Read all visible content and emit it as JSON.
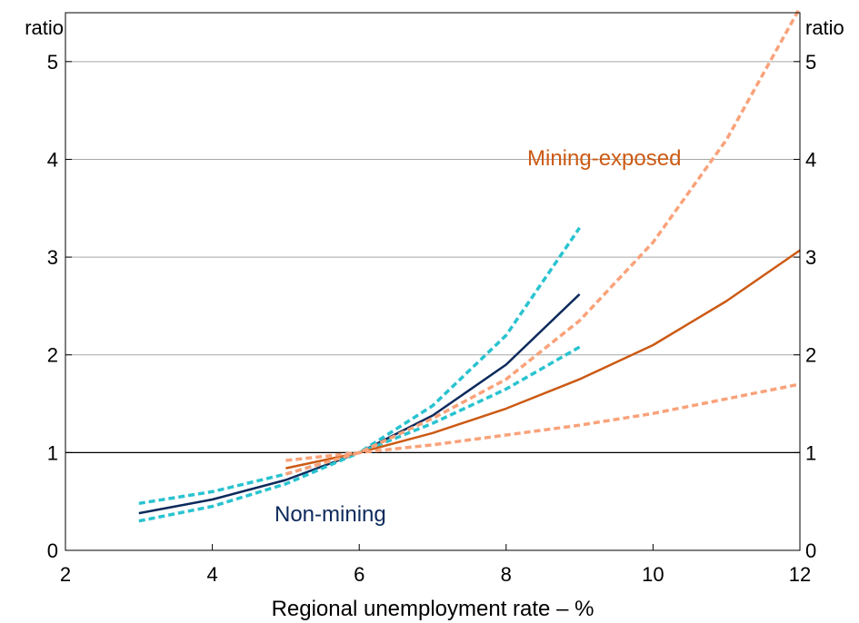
{
  "chart_data": {
    "type": "line",
    "xlabel": "Regional unemployment rate – %",
    "ylabel_left": "ratio",
    "ylabel_right": "ratio",
    "xlim": [
      2,
      12
    ],
    "ylim": [
      0,
      5.5
    ],
    "xticks": [
      2,
      4,
      6,
      8,
      10,
      12
    ],
    "yticks": [
      0,
      1,
      2,
      3,
      4,
      5
    ],
    "grid": "horizontal",
    "reference_line": 1,
    "annotations": [
      {
        "text": "Mining-exposed",
        "color": "#cc5a14"
      },
      {
        "text": "Non-mining",
        "color": "#0d2a5c"
      }
    ],
    "series": [
      {
        "group": "Non-mining",
        "role": "estimate",
        "color": "#0d2a5c",
        "dash": "solid",
        "x": [
          3,
          4,
          5,
          6,
          7,
          8,
          9
        ],
        "y": [
          0.38,
          0.52,
          0.72,
          1.0,
          1.38,
          1.9,
          2.62
        ]
      },
      {
        "group": "Non-mining",
        "role": "upper",
        "color": "#29c3d0",
        "dash": "dashed",
        "x": [
          3,
          4,
          5,
          6,
          7,
          8,
          9
        ],
        "y": [
          0.48,
          0.6,
          0.78,
          1.0,
          1.48,
          2.2,
          3.3
        ]
      },
      {
        "group": "Non-mining",
        "role": "lower",
        "color": "#29c3d0",
        "dash": "dashed",
        "x": [
          3,
          4,
          5,
          6,
          7,
          8,
          9
        ],
        "y": [
          0.3,
          0.45,
          0.68,
          1.0,
          1.3,
          1.65,
          2.08
        ]
      },
      {
        "group": "Mining-exposed",
        "role": "estimate",
        "color": "#cc5a14",
        "dash": "solid",
        "x": [
          5,
          6,
          7,
          8,
          9,
          10,
          11,
          12
        ],
        "y": [
          0.84,
          1.0,
          1.2,
          1.45,
          1.75,
          2.1,
          2.55,
          3.07
        ]
      },
      {
        "group": "Mining-exposed",
        "role": "upper",
        "color": "#f9a27a",
        "dash": "dashed",
        "x": [
          5,
          6,
          7,
          8,
          9,
          10,
          11,
          12
        ],
        "y": [
          0.78,
          1.0,
          1.35,
          1.75,
          2.35,
          3.15,
          4.2,
          5.55
        ]
      },
      {
        "group": "Mining-exposed",
        "role": "lower",
        "color": "#f9a27a",
        "dash": "dashed",
        "x": [
          5,
          6,
          7,
          8,
          9,
          10,
          11,
          12
        ],
        "y": [
          0.92,
          1.0,
          1.08,
          1.18,
          1.28,
          1.4,
          1.55,
          1.7
        ]
      }
    ]
  }
}
